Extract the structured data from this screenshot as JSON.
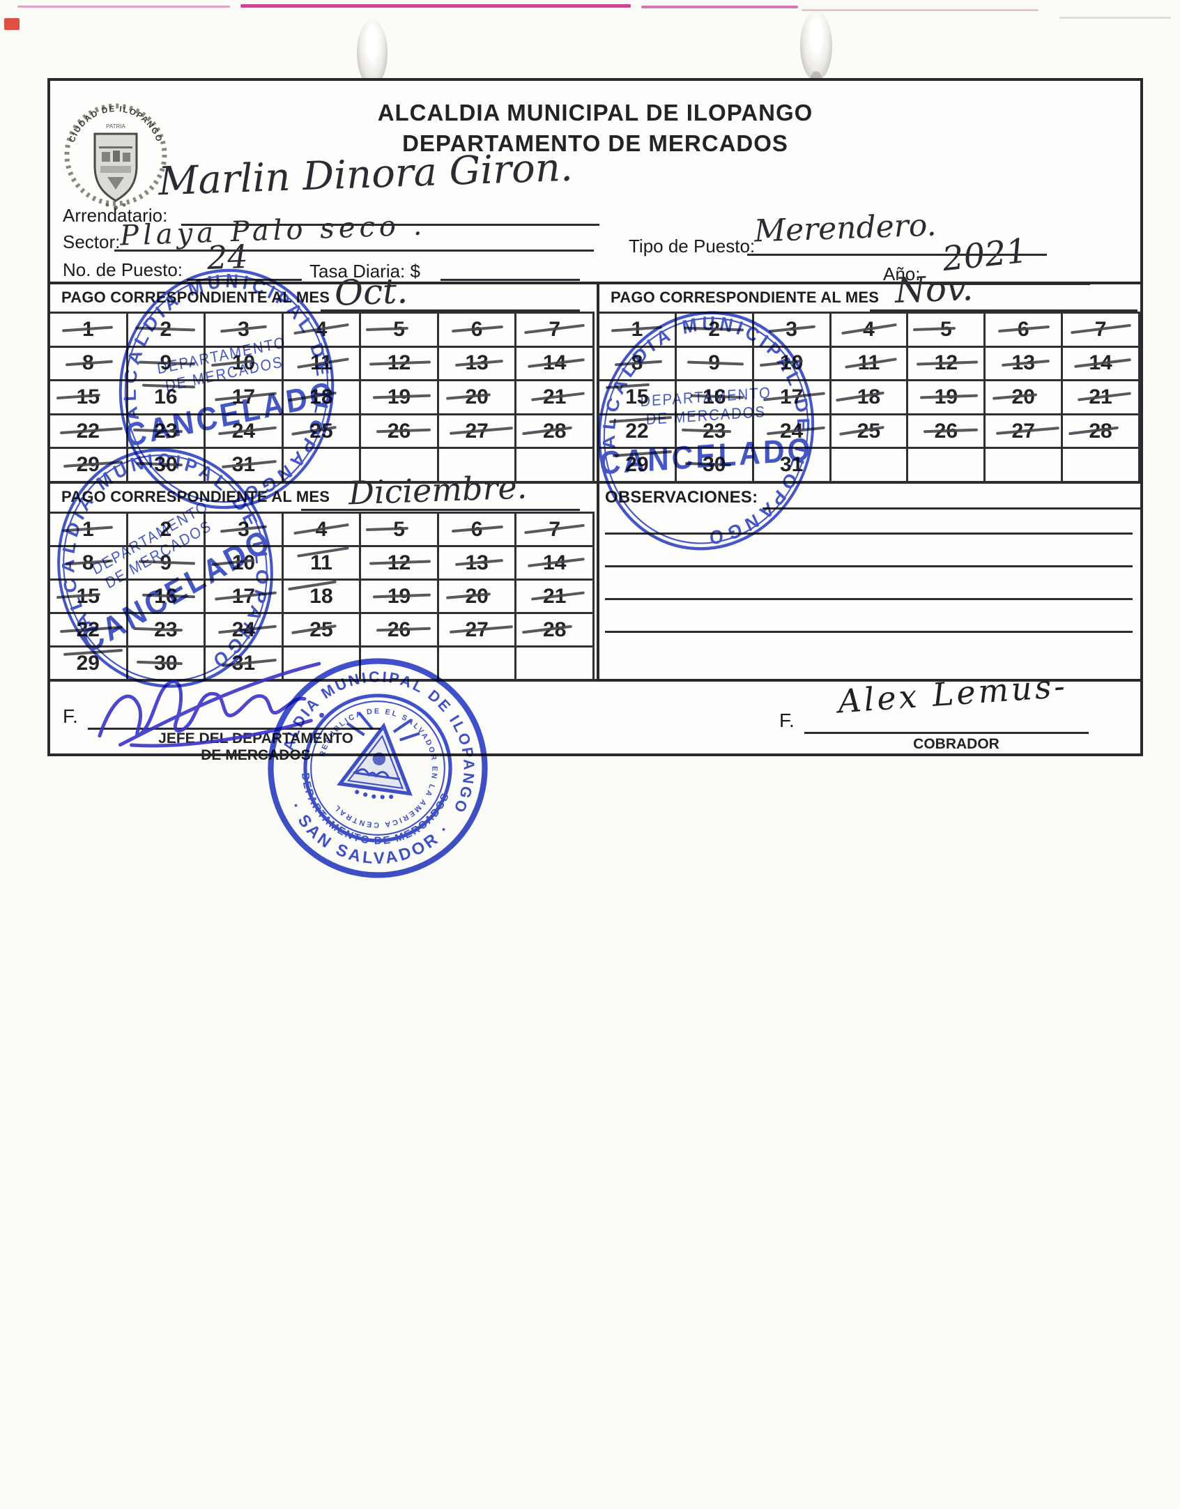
{
  "header": {
    "line1": "ALCALDIA MUNICIPAL DE ILOPANGO",
    "line2": "DEPARTAMENTO DE MERCADOS"
  },
  "logo": {
    "arc_text": "CIUDAD DE ILOPANGO",
    "motto": "PATRIA"
  },
  "fields": {
    "arrendatario_label": "Arrendatario:",
    "arrendatario_value": "Marlin Dinora Giron.",
    "sector_label": "Sector:",
    "sector_value": "Playa Palo seco .",
    "tipo_label": "Tipo de Puesto:",
    "tipo_value": "Merendero.",
    "puesto_label": "No. de Puesto:",
    "puesto_value": "24",
    "tasa_label": "Tasa Diaria: $",
    "tasa_value": "",
    "anio_label": "Año:",
    "anio_value": "2021"
  },
  "calendars": [
    {
      "label": "PAGO CORRESPONDIENTE AL MES",
      "month": "Oct.",
      "total_days": 31,
      "unstruck_days": [],
      "high_strike_days": [
        16
      ]
    },
    {
      "label": "PAGO CORRESPONDIENTE AL MES",
      "month": "Nov.",
      "total_days": 31,
      "unstruck_days": [
        31
      ],
      "high_strike_days": [
        15,
        22,
        29
      ]
    },
    {
      "label": "PAGO CORRESPONDIENTE AL MES",
      "month": "Diciembre.",
      "total_days": 31,
      "unstruck_days": [
        2
      ],
      "high_strike_days": [
        11,
        18,
        29
      ]
    }
  ],
  "observaciones": {
    "label": "OBSERVACIONES:",
    "line_count": 4
  },
  "stamps": {
    "cancelado_ring": "ALCALDIA MUNICIPAL DE ILOPANGO",
    "cancelado_line1": "DEPARTAMENTO",
    "cancelado_line2": "DE MERCADOS",
    "cancelado_word": "CANCELADO",
    "seal_top": "ALCALDIA MUNICIPAL DE ILOPANGO",
    "seal_mid": "DEPARTAMENTO DE MERCADOS",
    "seal_bottom": "· SAN SALVADOR ·",
    "seal_inner_ring": "REPUBLICA DE EL SALVADOR EN LA AMERICA CENTRAL"
  },
  "signatures": {
    "f_label": "F.",
    "jefe_line1": "JEFE DEL DEPARTAMENTO",
    "jefe_line2": "DE MERCADOS",
    "cobrador_name": "Alex Lemus-",
    "cobrador_label": "COBRADOR"
  },
  "colors": {
    "stamp_blue": "#2b3fc0",
    "ink_black": "#2b2b33",
    "ink_blue": "#3a34c8",
    "streak_pink": "#c23585"
  }
}
